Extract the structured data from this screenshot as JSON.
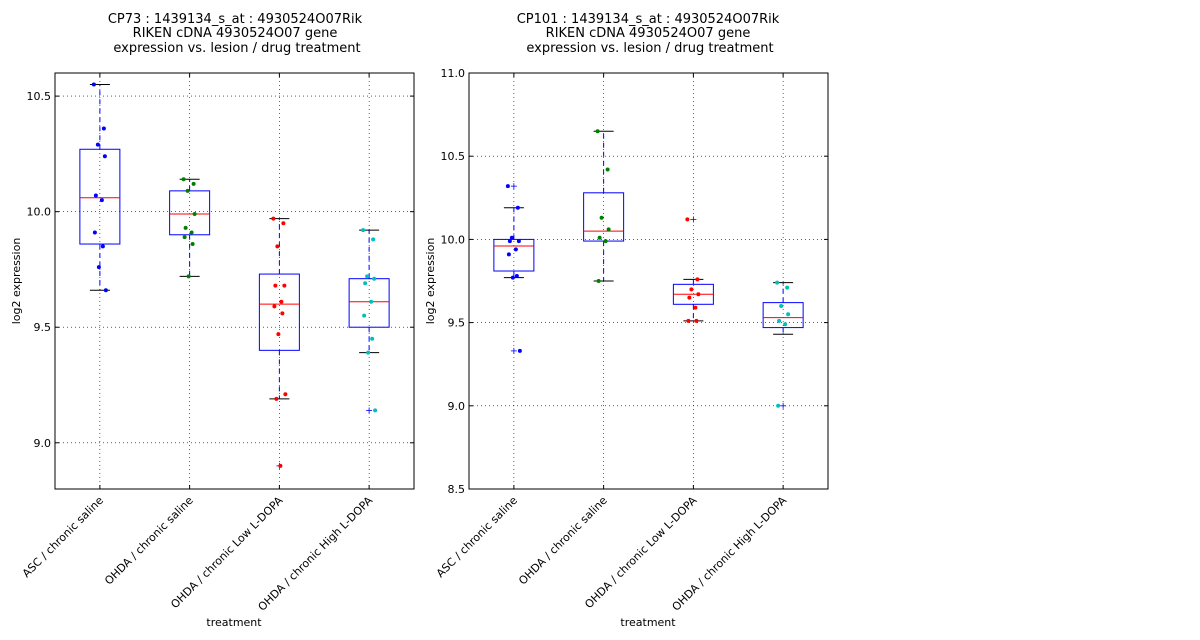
{
  "colors": {
    "box": "#0000ff",
    "median": "#ff0000",
    "grid": "#000000",
    "groups": [
      "#0000ff",
      "#008000",
      "#ff0000",
      "#00bfbf"
    ]
  },
  "chart_data": [
    {
      "type": "box",
      "title": [
        "CP73 : 1439134_s_at : 4930524O07Rik",
        "RIKEN cDNA 4930524O07 gene",
        "expression vs. lesion / drug treatment"
      ],
      "xlabel": "treatment",
      "ylabel": "log2 expression",
      "ylim": [
        8.8,
        10.6
      ],
      "yticks": [
        9.0,
        9.5,
        10.0,
        10.5
      ],
      "ytick_labels": [
        "9.0",
        "9.5",
        "10.0",
        "10.5"
      ],
      "grid": true,
      "categories": [
        "ASC / chronic saline",
        "OHDA / chronic saline",
        "OHDA / chronic Low L-DOPA",
        "OHDA / chronic High L-DOPA"
      ],
      "boxes": [
        {
          "whisker_low": 9.66,
          "q1": 9.86,
          "median": 10.06,
          "q3": 10.27,
          "whisker_high": 10.55,
          "outliers": []
        },
        {
          "whisker_low": 9.72,
          "q1": 9.9,
          "median": 9.99,
          "q3": 10.09,
          "whisker_high": 10.14,
          "outliers": []
        },
        {
          "whisker_low": 9.19,
          "q1": 9.4,
          "median": 9.6,
          "q3": 9.73,
          "whisker_high": 9.97,
          "outliers": [
            8.9
          ]
        },
        {
          "whisker_low": 9.39,
          "q1": 9.5,
          "median": 9.61,
          "q3": 9.71,
          "whisker_high": 9.92,
          "outliers": [
            9.14
          ]
        }
      ],
      "points": [
        [
          10.55,
          10.36,
          10.29,
          10.24,
          10.07,
          10.05,
          9.91,
          9.85,
          9.76,
          9.66
        ],
        [
          10.14,
          10.12,
          10.09,
          9.99,
          9.93,
          9.91,
          9.89,
          9.86,
          9.72
        ],
        [
          9.97,
          9.95,
          9.85,
          9.68,
          9.68,
          9.61,
          9.59,
          9.56,
          9.47,
          9.21,
          9.19,
          8.9
        ],
        [
          9.92,
          9.88,
          9.72,
          9.71,
          9.69,
          9.61,
          9.55,
          9.45,
          9.39,
          9.14
        ]
      ]
    },
    {
      "type": "box",
      "title": [
        "CP101 : 1439134_s_at : 4930524O07Rik",
        "RIKEN cDNA 4930524O07 gene",
        "expression vs. lesion / drug treatment"
      ],
      "xlabel": "treatment",
      "ylabel": "log2 expression",
      "ylim": [
        8.5,
        11.0
      ],
      "yticks": [
        8.5,
        9.0,
        9.5,
        10.0,
        10.5,
        11.0
      ],
      "ytick_labels": [
        "8.5",
        "9.0",
        "9.5",
        "10.0",
        "10.5",
        "11.0"
      ],
      "grid": true,
      "categories": [
        "ASC / chronic saline",
        "OHDA / chronic saline",
        "OHDA / chronic Low L-DOPA",
        "OHDA / chronic High L-DOPA"
      ],
      "boxes": [
        {
          "whisker_low": 9.77,
          "q1": 9.81,
          "median": 9.96,
          "q3": 10.0,
          "whisker_high": 10.19,
          "outliers": [
            10.32,
            9.33
          ]
        },
        {
          "whisker_low": 9.75,
          "q1": 9.99,
          "median": 10.05,
          "q3": 10.28,
          "whisker_high": 10.65,
          "outliers": []
        },
        {
          "whisker_low": 9.51,
          "q1": 9.61,
          "median": 9.67,
          "q3": 9.73,
          "whisker_high": 9.76,
          "outliers": [
            10.12
          ]
        },
        {
          "whisker_low": 9.43,
          "q1": 9.47,
          "median": 9.53,
          "q3": 9.62,
          "whisker_high": 9.74,
          "outliers": [
            9.0
          ]
        }
      ],
      "points": [
        [
          10.32,
          10.19,
          10.01,
          9.99,
          9.99,
          9.94,
          9.91,
          9.78,
          9.77,
          9.33
        ],
        [
          10.65,
          10.42,
          10.13,
          10.06,
          10.01,
          9.99,
          9.75
        ],
        [
          10.12,
          9.76,
          9.7,
          9.67,
          9.65,
          9.59,
          9.51,
          9.51
        ],
        [
          9.74,
          9.71,
          9.6,
          9.55,
          9.51,
          9.49,
          9.0
        ]
      ]
    }
  ]
}
